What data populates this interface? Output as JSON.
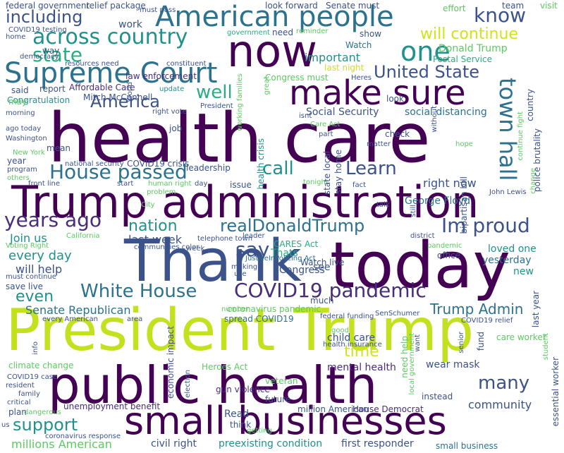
{
  "palette": {
    "purple": "#440154",
    "violet": "#472d7b",
    "indigo": "#3b528b",
    "blue": "#2c728e",
    "teal": "#21918c",
    "green": "#28ae80",
    "lime": "#5ec962",
    "yellow": "#addc30",
    "chartreuse": "#d2e21b"
  },
  "words": [
    {
      "text": "health care",
      "color": "#440154"
    },
    {
      "text": "President Trump",
      "color": "#c3e11f"
    },
    {
      "text": "Trump administration",
      "color": "#440154"
    },
    {
      "text": "public health",
      "color": "#440154"
    },
    {
      "text": "today",
      "color": "#440154"
    },
    {
      "text": "Thank",
      "color": "#3b528b"
    },
    {
      "text": "small businesses",
      "color": "#440154"
    },
    {
      "text": "now",
      "color": "#440154"
    },
    {
      "text": "make sure",
      "color": "#440154"
    },
    {
      "text": "American people",
      "color": "#2c728e"
    },
    {
      "text": "Supreme Court",
      "color": "#2c728e"
    },
    {
      "text": "across country",
      "color": "#21918c"
    },
    {
      "text": "one",
      "color": "#21918c"
    },
    {
      "text": "know",
      "color": "#3b528b"
    },
    {
      "text": "including",
      "color": "#3b528b"
    },
    {
      "text": "state",
      "color": "#28ae80"
    },
    {
      "text": "will continue",
      "color": "#d2e21b"
    },
    {
      "text": "United State",
      "color": "#3b528b"
    },
    {
      "text": "town hall",
      "color": "#2c728e"
    },
    {
      "text": "House passed",
      "color": "#2c728e"
    },
    {
      "text": "America",
      "color": "#3b528b"
    },
    {
      "text": "well",
      "color": "#28ae80"
    },
    {
      "text": "call",
      "color": "#21918c"
    },
    {
      "text": "Learn",
      "color": "#3b528b"
    },
    {
      "text": "years ago",
      "color": "#472d7b"
    },
    {
      "text": "nation",
      "color": "#21918c"
    },
    {
      "text": "realDonaldTrump",
      "color": "#2c728e"
    },
    {
      "text": "Im proud",
      "color": "#3b528b"
    },
    {
      "text": "say",
      "color": "#3b528b"
    },
    {
      "text": "White House",
      "color": "#2c728e"
    },
    {
      "text": "COVID19 pandemic",
      "color": "#472d7b"
    },
    {
      "text": "Senate Republican",
      "color": "#2c728e"
    },
    {
      "text": "Trump Admin",
      "color": "#2c728e"
    },
    {
      "text": "support",
      "color": "#21918c"
    },
    {
      "text": "many",
      "color": "#3b528b"
    },
    {
      "text": "even",
      "color": "#21918c"
    },
    {
      "text": "time",
      "color": "#d2e21b"
    },
    {
      "text": "millions American",
      "color": "#5ec962"
    },
    {
      "text": "every day",
      "color": "#21918c"
    },
    {
      "text": "will help",
      "color": "#3b528b"
    },
    {
      "text": "last week",
      "color": "#3b528b"
    },
    {
      "text": "Social Security",
      "color": "#3b528b"
    },
    {
      "text": "social distancing",
      "color": "#2c728e"
    },
    {
      "text": "Donald Trump",
      "color": "#5ec962"
    },
    {
      "text": "Postal Service",
      "color": "#28ae80"
    },
    {
      "text": "right now",
      "color": "#3b528b"
    },
    {
      "text": "George Floyd",
      "color": "#2c728e"
    },
    {
      "text": "Congress",
      "color": "#3b528b"
    },
    {
      "text": "Join us",
      "color": "#21918c"
    },
    {
      "text": "Thats",
      "color": "#28ae80"
    },
    {
      "text": "see",
      "color": "#3b528b"
    },
    {
      "text": "coronavirus pandemic",
      "color": "#5ec962"
    },
    {
      "text": "community",
      "color": "#3b528b"
    },
    {
      "text": "wear mask",
      "color": "#3b528b"
    },
    {
      "text": "mental health",
      "color": "#472d7b"
    },
    {
      "text": "preexisting condition",
      "color": "#21918c"
    },
    {
      "text": "civil right",
      "color": "#3b528b"
    },
    {
      "text": "first responder",
      "color": "#3b528b"
    },
    {
      "text": "small business",
      "color": "#2c728e"
    },
    {
      "text": "unemployment benefit",
      "color": "#472d7b"
    },
    {
      "text": "House Democrat",
      "color": "#472d7b"
    },
    {
      "text": "million American",
      "color": "#3b528b"
    },
    {
      "text": "Read",
      "color": "#3b528b"
    },
    {
      "text": "climate change",
      "color": "#5ec962"
    },
    {
      "text": "Heroes Act",
      "color": "#5ec962"
    },
    {
      "text": "gun violence",
      "color": "#472d7b"
    },
    {
      "text": "Watch live",
      "color": "#3b528b"
    },
    {
      "text": "CARES Act",
      "color": "#28ae80"
    },
    {
      "text": "JusticeInPolicing Act",
      "color": "#2c728e"
    },
    {
      "text": "loved one",
      "color": "#21918c"
    },
    {
      "text": "yesterday",
      "color": "#2c728e"
    },
    {
      "text": "office",
      "color": "#3b528b"
    },
    {
      "text": "new",
      "color": "#21918c"
    },
    {
      "text": "Affordable Care",
      "color": "#472d7b"
    },
    {
      "text": "Mitch McConnell",
      "color": "#3b528b"
    },
    {
      "text": "Congratulation",
      "color": "#21918c"
    },
    {
      "text": "report",
      "color": "#3b528b"
    },
    {
      "text": "said",
      "color": "#3b528b"
    },
    {
      "text": "may",
      "color": "#5ec962"
    },
    {
      "text": "law enforcement",
      "color": "#472d7b"
    },
    {
      "text": "resources need",
      "color": "#3b528b"
    },
    {
      "text": "democracy",
      "color": "#3b528b"
    },
    {
      "text": "way",
      "color": "#3b528b"
    },
    {
      "text": "work",
      "color": "#3b528b"
    },
    {
      "text": "COVID19 testing",
      "color": "#3b528b"
    },
    {
      "text": "federal government",
      "color": "#3b528b"
    },
    {
      "text": "relief package",
      "color": "#3b528b"
    },
    {
      "text": "must pass",
      "color": "#3b528b"
    },
    {
      "text": "look forward",
      "color": "#3b528b"
    },
    {
      "text": "Senate must",
      "color": "#3b528b"
    },
    {
      "text": "effort",
      "color": "#5ec962"
    },
    {
      "text": "team",
      "color": "#3b528b"
    },
    {
      "text": "visit",
      "color": "#5ec962"
    },
    {
      "text": "government",
      "color": "#28ae80"
    },
    {
      "text": "reminder",
      "color": "#5ec962"
    },
    {
      "text": "need",
      "color": "#3b528b"
    },
    {
      "text": "show",
      "color": "#3b528b"
    },
    {
      "text": "Watch",
      "color": "#2c728e"
    },
    {
      "text": "important",
      "color": "#21918c"
    },
    {
      "text": "last night",
      "color": "#d2e21b"
    },
    {
      "text": "Congress must",
      "color": "#5ec962"
    },
    {
      "text": "Heres",
      "color": "#3b528b"
    },
    {
      "text": "constituent",
      "color": "#3b528b"
    },
    {
      "text": "home",
      "color": "#3b528b"
    },
    {
      "text": "update",
      "color": "#21918c"
    },
    {
      "text": "President",
      "color": "#3b528b"
    },
    {
      "text": "look",
      "color": "#3b528b"
    },
    {
      "text": "morning",
      "color": "#3b528b"
    },
    {
      "text": "right vote",
      "color": "#3b528b"
    },
    {
      "text": "health crisis",
      "color": "#21918c"
    },
    {
      "text": "isnt",
      "color": "#3b528b"
    },
    {
      "text": "job",
      "color": "#3b528b"
    },
    {
      "text": "Care Act",
      "color": "#5ec962"
    },
    {
      "text": "part",
      "color": "#3b528b"
    },
    {
      "text": "check",
      "color": "#3b528b"
    },
    {
      "text": "ago today",
      "color": "#3b528b"
    },
    {
      "text": "Washington",
      "color": "#3b528b"
    },
    {
      "text": "mean",
      "color": "#3b528b"
    },
    {
      "text": "New York",
      "color": "#5ec962"
    },
    {
      "text": "matter",
      "color": "#3b528b"
    },
    {
      "text": "hope",
      "color": "#5ec962"
    },
    {
      "text": "year",
      "color": "#3b528b"
    },
    {
      "text": "program",
      "color": "#3b528b"
    },
    {
      "text": "others",
      "color": "#5ec962"
    },
    {
      "text": "COVID19 crisis",
      "color": "#3b528b"
    },
    {
      "text": "national security",
      "color": "#3b528b"
    },
    {
      "text": "leadership",
      "color": "#3b528b"
    },
    {
      "text": "front line",
      "color": "#3b528b"
    },
    {
      "text": "human right",
      "color": "#5ec962"
    },
    {
      "text": "start",
      "color": "#3b528b"
    },
    {
      "text": "issue",
      "color": "#3b528b"
    },
    {
      "text": "problem",
      "color": "#5ec962"
    },
    {
      "text": "day",
      "color": "#3b528b"
    },
    {
      "text": "tonight",
      "color": "#5ec962"
    },
    {
      "text": "fact",
      "color": "#3b528b"
    },
    {
      "text": "John Lewis",
      "color": "#3b528b"
    },
    {
      "text": "City",
      "color": "#5ec962"
    },
    {
      "text": "talk",
      "color": "#3b528b"
    },
    {
      "text": "California",
      "color": "#5ec962"
    },
    {
      "text": "leader",
      "color": "#3b528b"
    },
    {
      "text": "Voting Right",
      "color": "#5ec962"
    },
    {
      "text": "telephone town",
      "color": "#3b528b"
    },
    {
      "text": "district",
      "color": "#3b528b"
    },
    {
      "text": "communities color",
      "color": "#3b528b"
    },
    {
      "text": "week",
      "color": "#3b528b"
    },
    {
      "text": "pandemic",
      "color": "#5ec962"
    },
    {
      "text": "making",
      "color": "#3b528b"
    },
    {
      "text": "use",
      "color": "#3b528b"
    },
    {
      "text": "must continue",
      "color": "#3b528b"
    },
    {
      "text": "save live",
      "color": "#3b528b"
    },
    {
      "text": "much",
      "color": "#3b528b"
    },
    {
      "text": "spread COVID19",
      "color": "#2c728e"
    },
    {
      "text": "federal funding",
      "color": "#3b528b"
    },
    {
      "text": "SenSchumer",
      "color": "#3b528b"
    },
    {
      "text": "COVID19 relief",
      "color": "#3b528b"
    },
    {
      "text": "every American",
      "color": "#3b528b"
    },
    {
      "text": "area",
      "color": "#3b528b"
    },
    {
      "text": "child care",
      "color": "#3b528b"
    },
    {
      "text": "good",
      "color": "#5ec962"
    },
    {
      "text": "health insurance",
      "color": "#3b528b"
    },
    {
      "text": "care worker",
      "color": "#5ec962"
    },
    {
      "text": "fund",
      "color": "#3b528b"
    },
    {
      "text": "number",
      "color": "#5ec962"
    },
    {
      "text": "COVID19 case",
      "color": "#3b528b"
    },
    {
      "text": "resident",
      "color": "#3b528b"
    },
    {
      "text": "family",
      "color": "#3b528b"
    },
    {
      "text": "critical",
      "color": "#3b528b"
    },
    {
      "text": "plan",
      "color": "#3b528b"
    },
    {
      "text": "dangerous",
      "color": "#5ec962"
    },
    {
      "text": "us",
      "color": "#3b528b"
    },
    {
      "text": "coronavirus response",
      "color": "#3b528b"
    },
    {
      "text": "veteran",
      "color": "#5ec962"
    },
    {
      "text": "future",
      "color": "#3b528b"
    },
    {
      "text": "think",
      "color": "#3b528b"
    },
    {
      "text": "getting",
      "color": "#5ec962"
    },
    {
      "text": "instead",
      "color": "#3b528b"
    },
    {
      "text": "need help",
      "color": "#5ec962"
    },
    {
      "text": "economic impact",
      "color": "#3b528b"
    },
    {
      "text": "election",
      "color": "#3b528b"
    },
    {
      "text": "info",
      "color": "#3b528b"
    },
    {
      "text": "stay home",
      "color": "#3b528b"
    },
    {
      "text": "state local",
      "color": "#3b528b"
    },
    {
      "text": "local government",
      "color": "#5ec962"
    },
    {
      "text": "senior",
      "color": "#3b528b"
    },
    {
      "text": "want",
      "color": "#3b528b"
    },
    {
      "text": "still",
      "color": "#3b528b"
    },
    {
      "text": "bipartisan bill",
      "color": "#3b528b"
    },
    {
      "text": "without",
      "color": "#3b528b"
    },
    {
      "text": "continue fight",
      "color": "#5ec962"
    },
    {
      "text": "change",
      "color": "#5ec962"
    },
    {
      "text": "police brutality",
      "color": "#3b528b"
    },
    {
      "text": "country",
      "color": "#3b528b"
    },
    {
      "text": "working families",
      "color": "#5ec962"
    },
    {
      "text": "World",
      "color": "#3b528b"
    },
    {
      "text": "great",
      "color": "#5ec962"
    },
    {
      "text": "last year",
      "color": "#3b528b"
    },
    {
      "text": "student",
      "color": "#5ec962"
    },
    {
      "text": "essential worker",
      "color": "#3b528b"
    }
  ]
}
